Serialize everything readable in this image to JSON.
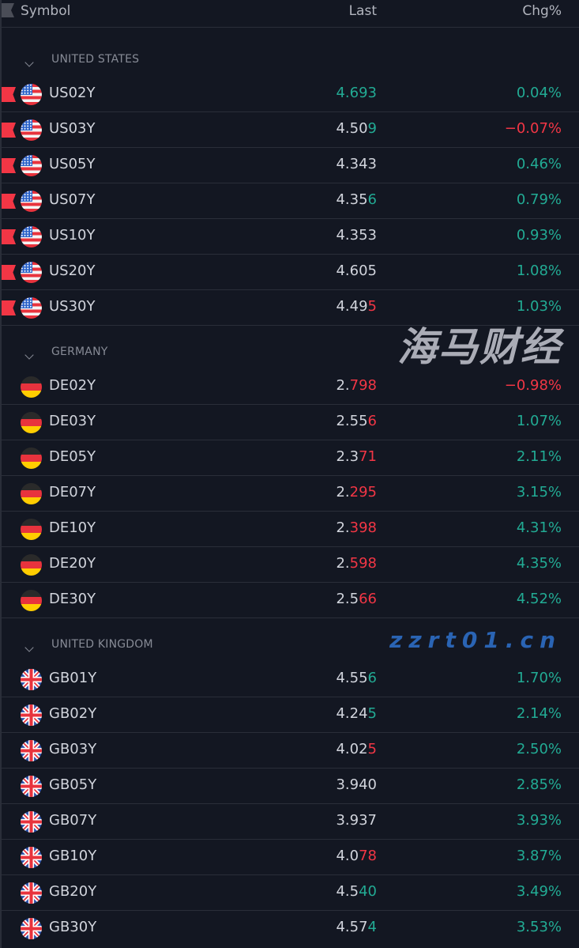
{
  "header": {
    "symbol": "Symbol",
    "last": "Last",
    "chg": "Chg%"
  },
  "colors": {
    "background": "#131722",
    "text": "#d1d4dc",
    "up": "#22ab94",
    "down": "#f23645",
    "grid": "#2a2e39",
    "marker": "#f23645"
  },
  "sections": [
    {
      "label": "UNITED STATES",
      "flag": "us-flag-icon",
      "flagged": true,
      "rows": [
        {
          "symbol": "US02Y",
          "last_base": "",
          "last_tick": "4.693",
          "tick_dir": "up",
          "chg": "0.04%",
          "chg_dir": "up"
        },
        {
          "symbol": "US03Y",
          "last_base": "4.50",
          "last_tick": "9",
          "tick_dir": "up",
          "chg": "−0.07%",
          "chg_dir": "down"
        },
        {
          "symbol": "US05Y",
          "last_base": "4.343",
          "last_tick": "",
          "tick_dir": "none",
          "chg": "0.46%",
          "chg_dir": "up"
        },
        {
          "symbol": "US07Y",
          "last_base": "4.35",
          "last_tick": "6",
          "tick_dir": "up",
          "chg": "0.79%",
          "chg_dir": "up"
        },
        {
          "symbol": "US10Y",
          "last_base": "4.353",
          "last_tick": "",
          "tick_dir": "none",
          "chg": "0.93%",
          "chg_dir": "up"
        },
        {
          "symbol": "US20Y",
          "last_base": "4.605",
          "last_tick": "",
          "tick_dir": "none",
          "chg": "1.08%",
          "chg_dir": "up"
        },
        {
          "symbol": "US30Y",
          "last_base": "4.49",
          "last_tick": "5",
          "tick_dir": "down",
          "chg": "1.03%",
          "chg_dir": "up"
        }
      ]
    },
    {
      "label": "GERMANY",
      "flag": "germany-flag-icon",
      "flagged": false,
      "rows": [
        {
          "symbol": "DE02Y",
          "last_base": "2.",
          "last_tick": "798",
          "tick_dir": "down",
          "chg": "−0.98%",
          "chg_dir": "down"
        },
        {
          "symbol": "DE03Y",
          "last_base": "2.55",
          "last_tick": "6",
          "tick_dir": "down",
          "chg": "1.07%",
          "chg_dir": "up"
        },
        {
          "symbol": "DE05Y",
          "last_base": "2.3",
          "last_tick": "71",
          "tick_dir": "down",
          "chg": "2.11%",
          "chg_dir": "up"
        },
        {
          "symbol": "DE07Y",
          "last_base": "2.",
          "last_tick": "295",
          "tick_dir": "down",
          "chg": "3.15%",
          "chg_dir": "up"
        },
        {
          "symbol": "DE10Y",
          "last_base": "2.",
          "last_tick": "398",
          "tick_dir": "down",
          "chg": "4.31%",
          "chg_dir": "up"
        },
        {
          "symbol": "DE20Y",
          "last_base": "2.",
          "last_tick": "598",
          "tick_dir": "down",
          "chg": "4.35%",
          "chg_dir": "up"
        },
        {
          "symbol": "DE30Y",
          "last_base": "2.5",
          "last_tick": "66",
          "tick_dir": "down",
          "chg": "4.52%",
          "chg_dir": "up"
        }
      ]
    },
    {
      "label": "UNITED KINGDOM",
      "flag": "uk-flag-icon",
      "flagged": false,
      "rows": [
        {
          "symbol": "GB01Y",
          "last_base": "4.55",
          "last_tick": "6",
          "tick_dir": "up",
          "chg": "1.70%",
          "chg_dir": "up"
        },
        {
          "symbol": "GB02Y",
          "last_base": "4.24",
          "last_tick": "5",
          "tick_dir": "up",
          "chg": "2.14%",
          "chg_dir": "up"
        },
        {
          "symbol": "GB03Y",
          "last_base": "4.02",
          "last_tick": "5",
          "tick_dir": "down",
          "chg": "2.50%",
          "chg_dir": "up"
        },
        {
          "symbol": "GB05Y",
          "last_base": "3.940",
          "last_tick": "",
          "tick_dir": "none",
          "chg": "2.85%",
          "chg_dir": "up"
        },
        {
          "symbol": "GB07Y",
          "last_base": "3.937",
          "last_tick": "",
          "tick_dir": "none",
          "chg": "3.93%",
          "chg_dir": "up"
        },
        {
          "symbol": "GB10Y",
          "last_base": "4.0",
          "last_tick": "78",
          "tick_dir": "down",
          "chg": "3.87%",
          "chg_dir": "up"
        },
        {
          "symbol": "GB20Y",
          "last_base": "4.5",
          "last_tick": "40",
          "tick_dir": "up",
          "chg": "3.49%",
          "chg_dir": "up"
        },
        {
          "symbol": "GB30Y",
          "last_base": "4.57",
          "last_tick": "4",
          "tick_dir": "up",
          "chg": "3.53%",
          "chg_dir": "up"
        }
      ]
    }
  ],
  "watermark": {
    "line1": "海马财经",
    "line2": "zzrt01.cn"
  }
}
